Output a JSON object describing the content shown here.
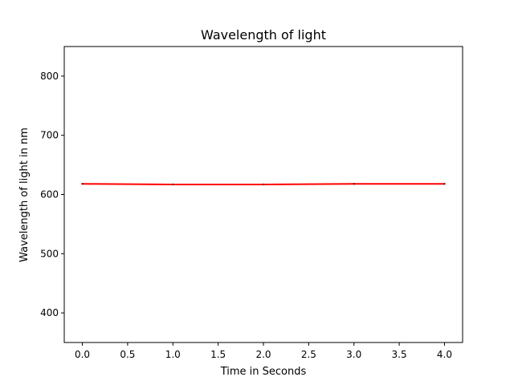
{
  "chart_data": {
    "type": "line",
    "title": "Wavelength of light",
    "xlabel": "Time in Seconds",
    "ylabel": "Wavelength of light in nm",
    "xlim": [
      -0.2,
      4.2
    ],
    "ylim": [
      350,
      850
    ],
    "xticks": [
      0.0,
      0.5,
      1.0,
      1.5,
      2.0,
      2.5,
      3.0,
      3.5,
      4.0
    ],
    "xtick_labels": [
      "0.0",
      "0.5",
      "1.0",
      "1.5",
      "2.0",
      "2.5",
      "3.0",
      "3.5",
      "4.0"
    ],
    "yticks": [
      400,
      500,
      600,
      700,
      800
    ],
    "ytick_labels": [
      "400",
      "500",
      "600",
      "700",
      "800"
    ],
    "grid": false,
    "series": [
      {
        "color": "#ff0000",
        "x": [
          0,
          1,
          2,
          3,
          4
        ],
        "y": [
          618,
          617,
          617,
          618,
          618
        ]
      }
    ]
  }
}
